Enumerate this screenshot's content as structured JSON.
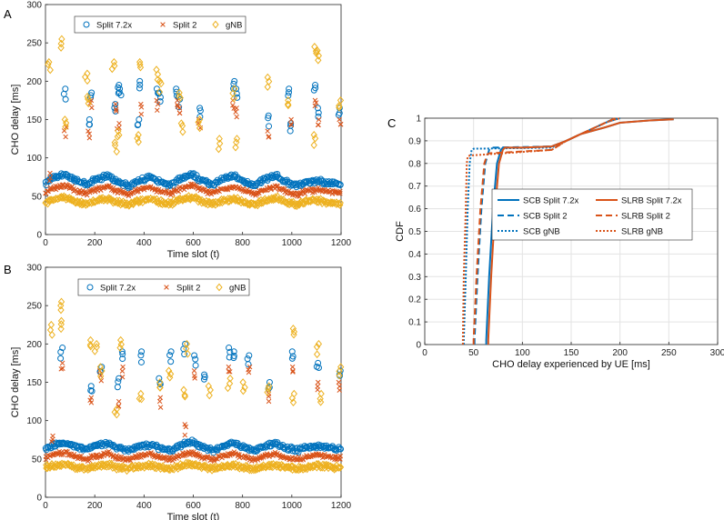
{
  "chart_data": [
    {
      "panel": "A",
      "type": "scatter",
      "xlabel": "Time slot (t)",
      "ylabel": "CHO delay [ms]",
      "xlim": [
        0,
        1200
      ],
      "ylim": [
        0,
        300
      ],
      "xticks": [
        0,
        200,
        400,
        600,
        800,
        1000,
        1200
      ],
      "yticks": [
        0,
        50,
        100,
        150,
        200,
        250,
        300
      ],
      "grid": false,
      "legend_position": "top-left",
      "series": [
        {
          "name": "Split 7.2x",
          "marker": "circle",
          "color": "#0072BD",
          "baseline": [
            68,
            80,
            66,
            78,
            64,
            76,
            65,
            80,
            66,
            78,
            65,
            78,
            64,
            72,
            66
          ],
          "events": [
            [
              75,
              190
            ],
            [
              170,
              150
            ],
            [
              180,
              185
            ],
            [
              280,
              170
            ],
            [
              290,
              195
            ],
            [
              300,
              190
            ],
            [
              370,
              150
            ],
            [
              380,
              200
            ],
            [
              450,
              190
            ],
            [
              460,
              185
            ],
            [
              530,
              190
            ],
            [
              540,
              180
            ],
            [
              620,
              165
            ],
            [
              760,
              200
            ],
            [
              770,
              190
            ],
            [
              900,
              155
            ],
            [
              980,
              190
            ],
            [
              990,
              145
            ],
            [
              1090,
              195
            ],
            [
              1100,
              165
            ],
            [
              1190,
              165
            ]
          ]
        },
        {
          "name": "Split 2",
          "marker": "x",
          "color": "#D95319",
          "baseline": [
            56,
            66,
            54,
            64,
            53,
            63,
            54,
            66,
            55,
            64,
            54,
            64,
            53,
            60,
            55
          ],
          "events": [
            [
              10,
              80
            ],
            [
              75,
              140
            ],
            [
              170,
              135
            ],
            [
              180,
              175
            ],
            [
              280,
              170
            ],
            [
              290,
              145
            ],
            [
              380,
              170
            ],
            [
              450,
              175
            ],
            [
              530,
              175
            ],
            [
              540,
              165
            ],
            [
              620,
              150
            ],
            [
              760,
              175
            ],
            [
              770,
              165
            ],
            [
              900,
              135
            ],
            [
              990,
              150
            ],
            [
              1090,
              175
            ],
            [
              1100,
              150
            ],
            [
              1190,
              150
            ]
          ]
        },
        {
          "name": "gNB",
          "marker": "diamond",
          "color": "#EDB120",
          "baseline": [
            42,
            50,
            40,
            48,
            40,
            48,
            41,
            50,
            41,
            48,
            40,
            48,
            40,
            46,
            41
          ],
          "events": [
            [
              10,
              225
            ],
            [
              60,
              255
            ],
            [
              75,
              150
            ],
            [
              160,
              210
            ],
            [
              170,
              180
            ],
            [
              270,
              225
            ],
            [
              280,
              120
            ],
            [
              290,
              135
            ],
            [
              370,
              130
            ],
            [
              380,
              225
            ],
            [
              450,
              215
            ],
            [
              460,
              200
            ],
            [
              540,
              185
            ],
            [
              550,
              145
            ],
            [
              620,
              150
            ],
            [
              700,
              125
            ],
            [
              760,
              190
            ],
            [
              770,
              125
            ],
            [
              900,
              205
            ],
            [
              980,
              175
            ],
            [
              1090,
              245
            ],
            [
              1100,
              240
            ],
            [
              1090,
              130
            ],
            [
              1190,
              175
            ]
          ]
        }
      ]
    },
    {
      "panel": "B",
      "type": "scatter",
      "xlabel": "Time slot (t)",
      "ylabel": "CHO delay [ms]",
      "xlim": [
        0,
        1200
      ],
      "ylim": [
        0,
        300
      ],
      "xticks": [
        0,
        200,
        400,
        600,
        800,
        1000,
        1200
      ],
      "yticks": [
        0,
        50,
        100,
        150,
        200,
        250,
        300
      ],
      "grid": false,
      "legend_position": "top-center",
      "series": [
        {
          "name": "Split 7.2x",
          "marker": "circle",
          "color": "#0072BD",
          "baseline": [
            64,
            72,
            64,
            72,
            62,
            70,
            62,
            74,
            62,
            72,
            62,
            72,
            62,
            68,
            64
          ],
          "events": [
            [
              60,
              195
            ],
            [
              180,
              145
            ],
            [
              220,
              170
            ],
            [
              290,
              155
            ],
            [
              310,
              190
            ],
            [
              380,
              190
            ],
            [
              460,
              155
            ],
            [
              500,
              190
            ],
            [
              560,
              200
            ],
            [
              600,
              185
            ],
            [
              640,
              160
            ],
            [
              740,
              195
            ],
            [
              760,
              190
            ],
            [
              820,
              185
            ],
            [
              900,
              150
            ],
            [
              1000,
              190
            ],
            [
              1100,
              175
            ],
            [
              1190,
              165
            ]
          ]
        },
        {
          "name": "Split 2",
          "marker": "x",
          "color": "#D95319",
          "baseline": [
            52,
            60,
            50,
            58,
            50,
            58,
            50,
            60,
            50,
            58,
            50,
            58,
            50,
            56,
            52
          ],
          "events": [
            [
              20,
              80
            ],
            [
              60,
              175
            ],
            [
              180,
              130
            ],
            [
              220,
              165
            ],
            [
              290,
              125
            ],
            [
              310,
              170
            ],
            [
              460,
              130
            ],
            [
              560,
              95
            ],
            [
              600,
              165
            ],
            [
              740,
              170
            ],
            [
              820,
              170
            ],
            [
              900,
              135
            ],
            [
              1000,
              170
            ],
            [
              1100,
              150
            ],
            [
              1190,
              150
            ]
          ]
        },
        {
          "name": "gNB",
          "marker": "diamond",
          "color": "#EDB120",
          "baseline": [
            40,
            44,
            38,
            43,
            38,
            43,
            38,
            45,
            38,
            43,
            38,
            43,
            38,
            42,
            40
          ],
          "events": [
            [
              20,
              225
            ],
            [
              60,
              255
            ],
            [
              60,
              230
            ],
            [
              180,
              205
            ],
            [
              200,
              200
            ],
            [
              220,
              170
            ],
            [
              280,
              115
            ],
            [
              300,
              205
            ],
            [
              380,
              135
            ],
            [
              460,
              150
            ],
            [
              500,
              165
            ],
            [
              560,
              140
            ],
            [
              570,
              200
            ],
            [
              660,
              145
            ],
            [
              740,
              155
            ],
            [
              800,
              150
            ],
            [
              900,
              145
            ],
            [
              1000,
              220
            ],
            [
              1000,
              135
            ],
            [
              1100,
              200
            ],
            [
              1110,
              135
            ],
            [
              1190,
              170
            ]
          ]
        }
      ]
    },
    {
      "panel": "C",
      "type": "line",
      "xlabel": "CHO delay experienced by UE [ms]",
      "ylabel": "CDF",
      "xlim": [
        0,
        300
      ],
      "ylim": [
        0,
        1
      ],
      "xticks": [
        0,
        50,
        100,
        150,
        200,
        250,
        300
      ],
      "yticks": [
        0,
        0.1,
        0.2,
        0.3,
        0.4,
        0.5,
        0.6,
        0.7,
        0.8,
        0.9,
        1
      ],
      "grid": true,
      "legend_position": "center-right",
      "series": [
        {
          "name": "SCB Split 7.2x",
          "color": "#0072BD",
          "style": "solid",
          "x": [
            63,
            63,
            66,
            70,
            74,
            78,
            80,
            100,
            130,
            145,
            160,
            185,
            200,
            230,
            255
          ],
          "y": [
            0,
            0.02,
            0.3,
            0.6,
            0.8,
            0.86,
            0.87,
            0.87,
            0.875,
            0.9,
            0.93,
            0.96,
            0.98,
            0.99,
            0.995
          ]
        },
        {
          "name": "SCB Split 2",
          "color": "#0072BD",
          "style": "dashed",
          "x": [
            51,
            51,
            54,
            58,
            62,
            66,
            68,
            130,
            145,
            160,
            175,
            185,
            190,
            195
          ],
          "y": [
            0,
            0.02,
            0.3,
            0.6,
            0.8,
            0.86,
            0.87,
            0.875,
            0.9,
            0.93,
            0.96,
            0.98,
            0.99,
            1
          ]
        },
        {
          "name": "SCB gNB",
          "color": "#0072BD",
          "style": "dotted",
          "x": [
            40,
            40,
            42,
            44,
            46,
            48,
            50,
            130,
            145,
            160,
            175,
            185,
            192,
            200
          ],
          "y": [
            0,
            0.02,
            0.3,
            0.6,
            0.8,
            0.86,
            0.865,
            0.87,
            0.9,
            0.93,
            0.96,
            0.98,
            0.99,
            1
          ]
        },
        {
          "name": "SLRB Split 7.2x",
          "color": "#D95319",
          "style": "solid",
          "x": [
            65,
            65,
            68,
            72,
            76,
            80,
            82,
            100,
            130,
            145,
            160,
            185,
            200,
            230,
            255
          ],
          "y": [
            0,
            0.02,
            0.3,
            0.6,
            0.8,
            0.86,
            0.87,
            0.87,
            0.875,
            0.9,
            0.93,
            0.96,
            0.98,
            0.99,
            0.995
          ]
        },
        {
          "name": "SLRB Split 2",
          "color": "#D95319",
          "style": "dashed",
          "x": [
            50,
            50,
            53,
            57,
            61,
            64,
            66,
            130,
            145,
            160,
            175,
            185,
            190,
            195
          ],
          "y": [
            0,
            0.02,
            0.3,
            0.6,
            0.8,
            0.84,
            0.845,
            0.86,
            0.9,
            0.93,
            0.96,
            0.98,
            0.99,
            1
          ]
        },
        {
          "name": "SLRB gNB",
          "color": "#D95319",
          "style": "dotted",
          "x": [
            39,
            39,
            40,
            42,
            43,
            44,
            46,
            130,
            145,
            160,
            175,
            185,
            192,
            200
          ],
          "y": [
            0,
            0.02,
            0.3,
            0.6,
            0.8,
            0.83,
            0.835,
            0.86,
            0.9,
            0.93,
            0.96,
            0.98,
            0.99,
            1
          ]
        }
      ]
    }
  ]
}
